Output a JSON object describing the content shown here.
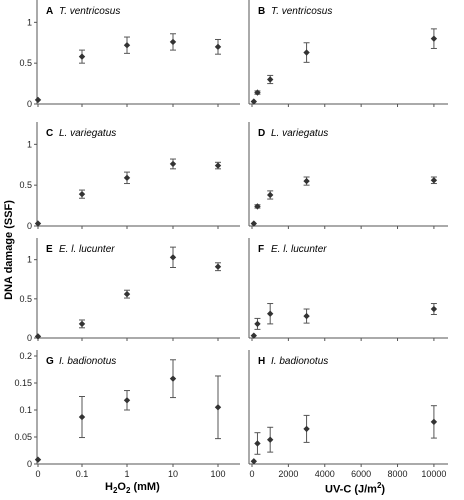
{
  "y_label": "DNA damage (SSF)",
  "x_left_label": {
    "prefix": "H",
    "sub": "2",
    "mid": "O",
    "sub2": "2",
    "suffix": " (mM)"
  },
  "x_right_label": {
    "prefix": "UV-C (J/m",
    "sup": "2",
    "suffix": ")"
  },
  "colors": {
    "marker": "#333333",
    "axis": "#555555",
    "errorbar": "#555555"
  },
  "chart_data": [
    {
      "type": "scatter",
      "panel": "A",
      "species": "T. ventricosus",
      "x_scale": "log",
      "x_ticks": [
        "0",
        "0.1",
        "1",
        "10",
        "100"
      ],
      "show_x_tick_labels": false,
      "ylim": [
        0,
        1.2
      ],
      "y_ticks": [
        "0",
        "0.5",
        "1"
      ],
      "x": [
        "0",
        "0.1",
        "1",
        "10",
        "100"
      ],
      "y": [
        0.05,
        0.58,
        0.72,
        0.76,
        0.7
      ],
      "err": [
        0,
        0.08,
        0.1,
        0.1,
        0.09
      ]
    },
    {
      "type": "scatter",
      "panel": "B",
      "species": "T. ventricosus",
      "x_scale": "linear",
      "xlim": [
        0,
        10500
      ],
      "x_ticks": [
        "0",
        "2000",
        "4000",
        "6000",
        "8000",
        "10000"
      ],
      "show_x_tick_labels": false,
      "ylim": [
        0,
        1.2
      ],
      "y_ticks": [],
      "x": [
        100,
        300,
        1000,
        3000,
        10000
      ],
      "y": [
        0.03,
        0.14,
        0.3,
        0.63,
        0.8
      ],
      "err": [
        0,
        0.02,
        0.05,
        0.12,
        0.12
      ]
    },
    {
      "type": "scatter",
      "panel": "C",
      "species": "L. variegatus",
      "x_scale": "log",
      "x_ticks": [
        "0",
        "0.1",
        "1",
        "10",
        "100"
      ],
      "show_x_tick_labels": false,
      "ylim": [
        0,
        1.2
      ],
      "y_ticks": [
        "0",
        "0.5",
        "1"
      ],
      "x": [
        "0",
        "0.1",
        "1",
        "10",
        "100"
      ],
      "y": [
        0.03,
        0.39,
        0.59,
        0.76,
        0.74
      ],
      "err": [
        0,
        0.05,
        0.07,
        0.06,
        0.04
      ]
    },
    {
      "type": "scatter",
      "panel": "D",
      "species": "L. variegatus",
      "x_scale": "linear",
      "xlim": [
        0,
        10500
      ],
      "x_ticks": [
        "0",
        "2000",
        "4000",
        "6000",
        "8000",
        "10000"
      ],
      "show_x_tick_labels": false,
      "ylim": [
        0,
        1.2
      ],
      "y_ticks": [],
      "x": [
        100,
        300,
        1000,
        3000,
        10000
      ],
      "y": [
        0.03,
        0.24,
        0.38,
        0.55,
        0.56
      ],
      "err": [
        0,
        0.02,
        0.05,
        0.05,
        0.04
      ]
    },
    {
      "type": "scatter",
      "panel": "E",
      "species": "E. l. lucunter",
      "x_scale": "log",
      "x_ticks": [
        "0",
        "0.1",
        "1",
        "10",
        "100"
      ],
      "show_x_tick_labels": false,
      "ylim": [
        0,
        1.2
      ],
      "y_ticks": [
        "0",
        "0.5",
        "1"
      ],
      "x": [
        "0",
        "0.1",
        "1",
        "10",
        "100"
      ],
      "y": [
        0.02,
        0.18,
        0.56,
        1.03,
        0.91
      ],
      "err": [
        0,
        0.05,
        0.05,
        0.13,
        0.05
      ]
    },
    {
      "type": "scatter",
      "panel": "F",
      "species": "E. l. lucunter",
      "x_scale": "linear",
      "xlim": [
        0,
        10500
      ],
      "x_ticks": [
        "0",
        "2000",
        "4000",
        "6000",
        "8000",
        "10000"
      ],
      "show_x_tick_labels": false,
      "ylim": [
        0,
        1.2
      ],
      "y_ticks": [],
      "x": [
        100,
        300,
        1000,
        3000,
        10000
      ],
      "y": [
        0.03,
        0.18,
        0.31,
        0.28,
        0.37
      ],
      "err": [
        0,
        0.07,
        0.13,
        0.09,
        0.07
      ]
    },
    {
      "type": "scatter",
      "panel": "G",
      "species": "I. badionotus",
      "x_scale": "log",
      "x_ticks": [
        "0",
        "0.1",
        "1",
        "10",
        "100"
      ],
      "show_x_tick_labels": true,
      "ylim": [
        0,
        0.2
      ],
      "y_ticks": [
        "0",
        "0.05",
        "0.1",
        "0.15",
        "0.2"
      ],
      "x": [
        "0",
        "0.1",
        "1",
        "10",
        "100"
      ],
      "y": [
        0.008,
        0.087,
        0.118,
        0.158,
        0.105
      ],
      "err": [
        0,
        0.038,
        0.018,
        0.035,
        0.058
      ]
    },
    {
      "type": "scatter",
      "panel": "H",
      "species": "I. badionotus",
      "x_scale": "linear",
      "xlim": [
        0,
        10500
      ],
      "x_ticks": [
        "0",
        "2000",
        "4000",
        "6000",
        "8000",
        "10000"
      ],
      "show_x_tick_labels": true,
      "ylim": [
        0,
        0.2
      ],
      "y_ticks": [],
      "x": [
        100,
        300,
        1000,
        3000,
        10000
      ],
      "y": [
        0.005,
        0.038,
        0.045,
        0.065,
        0.078
      ],
      "err": [
        0,
        0.02,
        0.023,
        0.025,
        0.03
      ]
    }
  ]
}
